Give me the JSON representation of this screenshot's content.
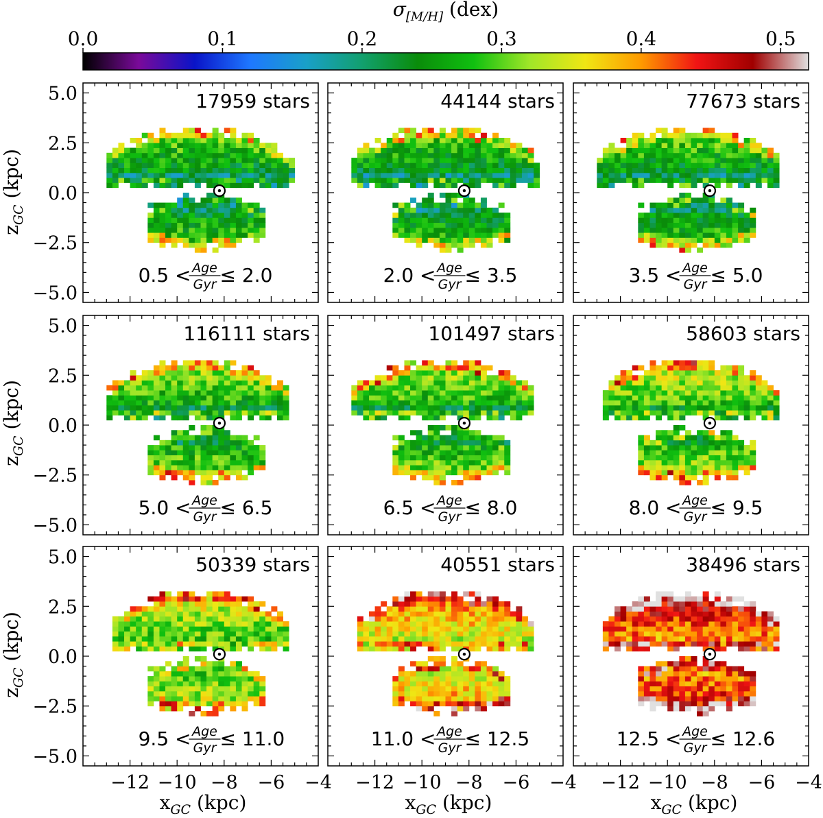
{
  "chart_data": {
    "type": "heatmap",
    "colorbar": {
      "label_sigma": "σ",
      "label_sub": "[M/H]",
      "label_unit": " (dex)",
      "range": [
        0.0,
        0.52
      ],
      "ticks": [
        0.0,
        0.1,
        0.2,
        0.3,
        0.4,
        0.5
      ],
      "tick_labels": [
        "0.0",
        "0.1",
        "0.2",
        "0.3",
        "0.4",
        "0.5"
      ],
      "colormap": [
        "#000000",
        "#7a0a9a",
        "#0a14c8",
        "#1e78ff",
        "#19a0c8",
        "#12a06e",
        "#0a8c0a",
        "#10c010",
        "#a0e628",
        "#f0e614",
        "#ff9a00",
        "#f01414",
        "#a00000",
        "#e0e0e0"
      ]
    },
    "xaxis": {
      "label_main": "x",
      "label_sub": "GC",
      "label_unit": " (kpc)",
      "range": [
        -14,
        -4
      ],
      "ticks": [
        -12,
        -10,
        -8,
        -6,
        -4
      ],
      "tick_labels": [
        "−12",
        "−10",
        "−8",
        "−6",
        "−4"
      ]
    },
    "yaxis": {
      "label_main": "z",
      "label_sub": "GC",
      "label_unit": " (kpc)",
      "range": [
        -5.5,
        5.5
      ],
      "ticks": [
        5.0,
        2.5,
        0.0,
        -2.5,
        -5.0
      ],
      "tick_labels": [
        "5.0",
        "2.5",
        "0.0",
        "−2.5",
        "−5.0"
      ]
    },
    "sun_position": [
      -8.2,
      0.1
    ],
    "age_label": {
      "num": "Age",
      "den": "Gyr",
      "lt": " < ",
      "le": " ≤ "
    },
    "panels": [
      {
        "stars": "17959 stars",
        "age_lo": "0.5",
        "age_hi": "2.0",
        "mean_sigma": 0.22
      },
      {
        "stars": "44144 stars",
        "age_lo": "2.0",
        "age_hi": "3.5",
        "mean_sigma": 0.215
      },
      {
        "stars": "77673 stars",
        "age_lo": "3.5",
        "age_hi": "5.0",
        "mean_sigma": 0.22
      },
      {
        "stars": "116111 stars",
        "age_lo": "5.0",
        "age_hi": "6.5",
        "mean_sigma": 0.245
      },
      {
        "stars": "101497 stars",
        "age_lo": "6.5",
        "age_hi": "8.0",
        "mean_sigma": 0.25
      },
      {
        "stars": "58603 stars",
        "age_lo": "8.0",
        "age_hi": "9.5",
        "mean_sigma": 0.265
      },
      {
        "stars": "50339 stars",
        "age_lo": "9.5",
        "age_hi": "11.0",
        "mean_sigma": 0.275
      },
      {
        "stars": "40551 stars",
        "age_lo": "11.0",
        "age_hi": "12.5",
        "mean_sigma": 0.33
      },
      {
        "stars": "38496 stars",
        "age_lo": "12.5",
        "age_hi": "12.6",
        "mean_sigma": 0.39
      }
    ]
  }
}
